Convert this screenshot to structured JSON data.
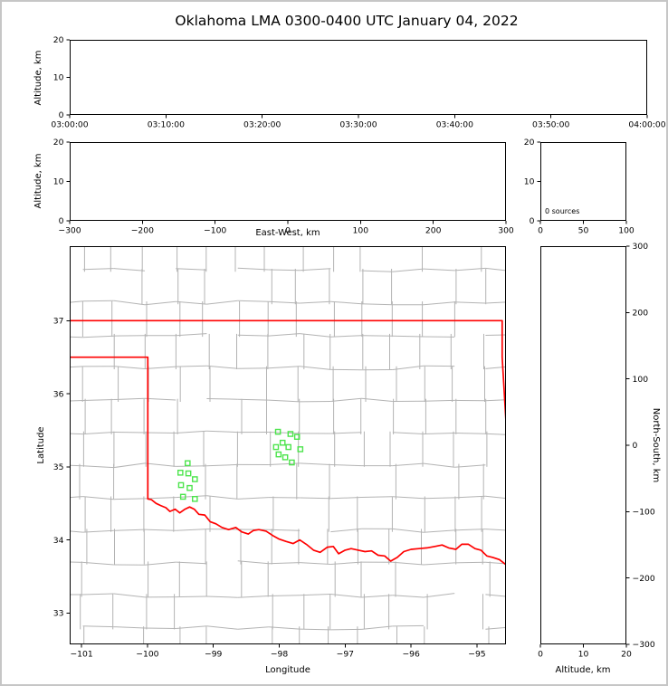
{
  "title": "Oklahoma LMA 0300-0400 UTC January 04, 2022",
  "colors": {
    "background": "#ffffff",
    "figure_frame": "#c6c6c6",
    "axis": "#000000",
    "county_line": "#b3b3b3",
    "state_border": "#ff0000",
    "station_marker": "#4ce44c"
  },
  "chart_data": [
    {
      "id": "time_height",
      "type": "scatter",
      "panel": "altitude-vs-time",
      "ylabel": "Altitude, km",
      "ylim": [
        0,
        20
      ],
      "yticks": [
        0,
        10,
        20
      ],
      "xtick_labels": [
        "03:00:00",
        "03:10:00",
        "03:20:00",
        "03:30:00",
        "03:40:00",
        "03:50:00",
        "04:00:00"
      ],
      "points": []
    },
    {
      "id": "ew_height",
      "type": "scatter",
      "panel": "altitude-vs-east-west",
      "xlabel": "East-West, km",
      "ylabel": "Altitude, km",
      "xlim": [
        -300,
        300
      ],
      "xticks": [
        -300,
        -200,
        -100,
        0,
        100,
        200,
        300
      ],
      "ylim": [
        0,
        20
      ],
      "yticks": [
        0,
        10,
        20
      ],
      "points": []
    },
    {
      "id": "histogram",
      "type": "line",
      "panel": "altitude-source-count-histogram",
      "annotation": "0 sources",
      "xlim": [
        0,
        100
      ],
      "xticks": [
        0,
        50,
        100
      ],
      "ylim": [
        0,
        20
      ],
      "yticks": [
        0,
        10,
        20
      ],
      "points": []
    },
    {
      "id": "plan_view",
      "type": "scatter",
      "panel": "map-plan-view",
      "xlabel": "Longitude",
      "ylabel": "Latitude",
      "xlim": [
        -101.18,
        -94.56
      ],
      "xticks": [
        -101,
        -100,
        -99,
        -98,
        -97,
        -96,
        -95
      ],
      "ylim": [
        32.57,
        38.02
      ],
      "yticks": [
        33,
        34,
        35,
        36,
        37
      ],
      "stations": [
        [
          -99.39,
          35.05
        ],
        [
          -99.5,
          34.92
        ],
        [
          -99.38,
          34.91
        ],
        [
          -99.28,
          34.83
        ],
        [
          -99.49,
          34.75
        ],
        [
          -99.36,
          34.71
        ],
        [
          -99.46,
          34.59
        ],
        [
          -99.28,
          34.56
        ],
        [
          -98.02,
          35.48
        ],
        [
          -97.83,
          35.45
        ],
        [
          -97.73,
          35.41
        ],
        [
          -97.95,
          35.33
        ],
        [
          -98.05,
          35.27
        ],
        [
          -97.86,
          35.27
        ],
        [
          -97.68,
          35.24
        ],
        [
          -98.01,
          35.17
        ],
        [
          -97.91,
          35.13
        ],
        [
          -97.81,
          35.06
        ]
      ],
      "state_border": [
        [
          [
            -101.3,
            37.0
          ],
          [
            -94.617,
            37.0
          ]
        ],
        [
          [
            -94.617,
            37.0
          ],
          [
            -94.617,
            36.5
          ],
          [
            -94.43,
            33.62
          ]
        ],
        [
          [
            -101.3,
            36.5
          ],
          [
            -99.995,
            36.5
          ],
          [
            -99.995,
            34.56
          ]
        ],
        [
          [
            -99.995,
            34.56
          ],
          [
            -99.94,
            34.55
          ],
          [
            -99.87,
            34.5
          ],
          [
            -99.8,
            34.47
          ],
          [
            -99.72,
            34.44
          ],
          [
            -99.66,
            34.39
          ],
          [
            -99.58,
            34.42
          ],
          [
            -99.51,
            34.37
          ],
          [
            -99.43,
            34.42
          ],
          [
            -99.36,
            34.45
          ],
          [
            -99.29,
            34.42
          ],
          [
            -99.22,
            34.35
          ],
          [
            -99.13,
            34.34
          ],
          [
            -99.05,
            34.25
          ],
          [
            -98.96,
            34.22
          ],
          [
            -98.87,
            34.17
          ],
          [
            -98.77,
            34.14
          ],
          [
            -98.66,
            34.17
          ],
          [
            -98.57,
            34.11
          ],
          [
            -98.47,
            34.08
          ],
          [
            -98.39,
            34.13
          ],
          [
            -98.31,
            34.14
          ],
          [
            -98.2,
            34.12
          ],
          [
            -98.1,
            34.06
          ],
          [
            -98.0,
            34.01
          ],
          [
            -97.9,
            33.98
          ],
          [
            -97.79,
            33.95
          ],
          [
            -97.69,
            34.0
          ],
          [
            -97.59,
            33.94
          ],
          [
            -97.48,
            33.86
          ],
          [
            -97.38,
            33.83
          ],
          [
            -97.27,
            33.9
          ],
          [
            -97.18,
            33.91
          ],
          [
            -97.1,
            33.81
          ],
          [
            -97.0,
            33.86
          ],
          [
            -96.91,
            33.88
          ],
          [
            -96.8,
            33.86
          ],
          [
            -96.7,
            33.84
          ],
          [
            -96.6,
            33.85
          ],
          [
            -96.5,
            33.79
          ],
          [
            -96.4,
            33.78
          ],
          [
            -96.31,
            33.71
          ],
          [
            -96.21,
            33.76
          ],
          [
            -96.11,
            33.84
          ],
          [
            -96.0,
            33.87
          ],
          [
            -95.88,
            33.88
          ],
          [
            -95.76,
            33.89
          ],
          [
            -95.64,
            33.91
          ],
          [
            -95.53,
            33.93
          ],
          [
            -95.43,
            33.89
          ],
          [
            -95.32,
            33.87
          ],
          [
            -95.23,
            33.94
          ],
          [
            -95.13,
            33.94
          ],
          [
            -95.03,
            33.88
          ],
          [
            -94.94,
            33.86
          ],
          [
            -94.85,
            33.78
          ],
          [
            -94.76,
            33.76
          ],
          [
            -94.66,
            33.73
          ],
          [
            -94.56,
            33.66
          ],
          [
            -94.43,
            33.63
          ]
        ]
      ],
      "county_grid": {
        "lon_start": -101.45,
        "lon_step": 0.47,
        "lat_start": 32.35,
        "lat_step": 0.445,
        "cols": 15,
        "rows": 14,
        "seed": 20220104
      },
      "points": []
    },
    {
      "id": "ns_height",
      "type": "scatter",
      "panel": "north-south-vs-altitude",
      "xlabel": "Altitude, km",
      "ylabel": "North-South, km",
      "xlim": [
        0,
        20
      ],
      "xticks": [
        0,
        10,
        20
      ],
      "ylim": [
        -300,
        300
      ],
      "yticks": [
        -300,
        -200,
        -100,
        0,
        100,
        200,
        300
      ],
      "points": []
    }
  ]
}
